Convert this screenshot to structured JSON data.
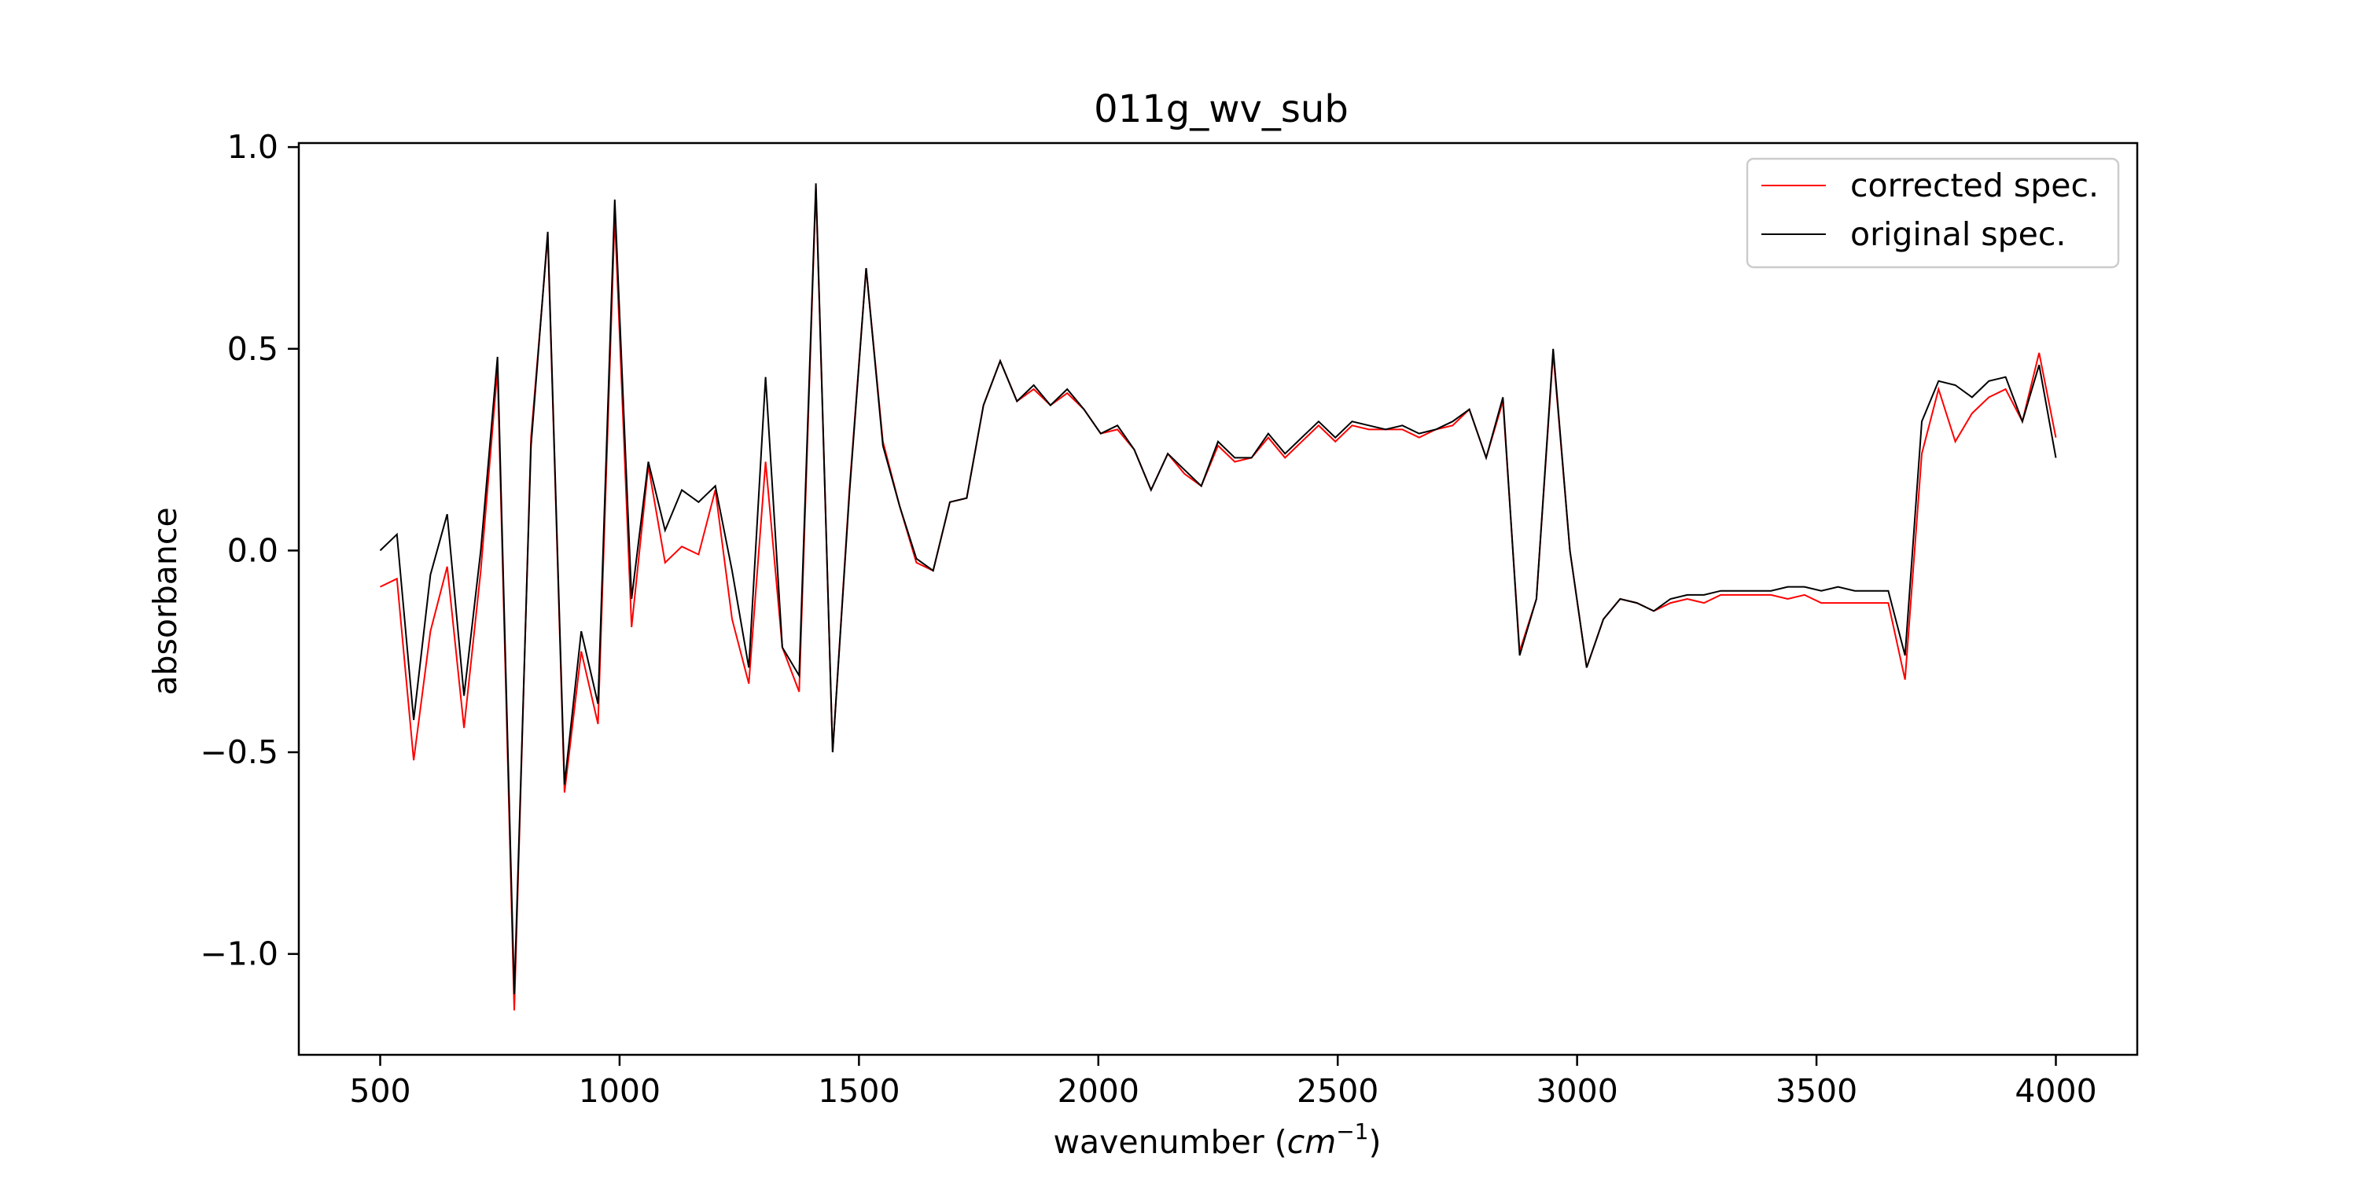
{
  "chart_data": {
    "type": "line",
    "title": "011g_wv_sub",
    "xlabel": "wavenumber (cm⁻¹)",
    "xlabel_text": "wavenumber (",
    "xlabel_unit": "cm",
    "xlabel_exp": "−1",
    "xlabel_close": ")",
    "ylabel": "absorbance",
    "xlim": [
      330,
      4170
    ],
    "ylim": [
      -1.25,
      1.01
    ],
    "xticks": [
      500,
      1000,
      1500,
      2000,
      2500,
      3000,
      3500,
      4000
    ],
    "xtick_labels": [
      "500",
      "1000",
      "1500",
      "2000",
      "2500",
      "3000",
      "3500",
      "4000"
    ],
    "yticks": [
      -1.0,
      -0.5,
      0.0,
      0.5,
      1.0
    ],
    "ytick_labels": [
      "−1.0",
      "−0.5",
      "0.0",
      "0.5",
      "1.0"
    ],
    "grid": false,
    "legend_position": "top-right",
    "x": [
      500,
      535,
      570,
      605,
      640,
      675,
      710,
      745,
      780,
      815,
      850,
      885,
      920,
      955,
      990,
      1025,
      1060,
      1095,
      1130,
      1165,
      1200,
      1235,
      1270,
      1305,
      1340,
      1375,
      1410,
      1445,
      1480,
      1515,
      1550,
      1585,
      1620,
      1655,
      1690,
      1725,
      1760,
      1795,
      1830,
      1865,
      1900,
      1935,
      1970,
      2005,
      2040,
      2075,
      2110,
      2145,
      2180,
      2215,
      2250,
      2285,
      2320,
      2355,
      2390,
      2425,
      2460,
      2495,
      2530,
      2565,
      2600,
      2635,
      2670,
      2705,
      2740,
      2775,
      2810,
      2845,
      2880,
      2915,
      2950,
      2985,
      3020,
      3055,
      3090,
      3125,
      3160,
      3195,
      3230,
      3265,
      3300,
      3335,
      3370,
      3405,
      3440,
      3475,
      3510,
      3545,
      3580,
      3615,
      3650,
      3685,
      3720,
      3755,
      3790,
      3825,
      3860,
      3895,
      3930,
      3965,
      4000
    ],
    "series": [
      {
        "name": "corrected spec.",
        "color": "#ff0000",
        "values": [
          -0.09,
          -0.07,
          -0.52,
          -0.2,
          -0.04,
          -0.44,
          -0.05,
          0.45,
          -1.14,
          0.28,
          0.78,
          -0.6,
          -0.25,
          -0.43,
          0.83,
          -0.19,
          0.21,
          -0.03,
          0.01,
          -0.01,
          0.15,
          -0.17,
          -0.33,
          0.22,
          -0.24,
          -0.35,
          0.9,
          -0.5,
          0.15,
          0.7,
          0.27,
          0.11,
          -0.03,
          -0.05,
          0.12,
          0.13,
          0.36,
          0.47,
          0.37,
          0.4,
          0.36,
          0.39,
          0.35,
          0.29,
          0.3,
          0.25,
          0.15,
          0.24,
          0.19,
          0.16,
          0.26,
          0.22,
          0.23,
          0.28,
          0.23,
          0.27,
          0.31,
          0.27,
          0.31,
          0.3,
          0.3,
          0.3,
          0.28,
          0.3,
          0.31,
          0.35,
          0.23,
          0.37,
          -0.25,
          -0.12,
          0.49,
          0.0,
          -0.29,
          -0.17,
          -0.12,
          -0.13,
          -0.15,
          -0.13,
          -0.12,
          -0.13,
          -0.11,
          -0.11,
          -0.11,
          -0.11,
          -0.12,
          -0.11,
          -0.13,
          -0.13,
          -0.13,
          -0.13,
          -0.13,
          -0.32,
          0.24,
          0.4,
          0.27,
          0.34,
          0.38,
          0.4,
          0.32,
          0.49,
          0.28
        ]
      },
      {
        "name": "original spec.",
        "color": "#000000",
        "values": [
          0.0,
          0.04,
          -0.42,
          -0.06,
          0.09,
          -0.36,
          0.0,
          0.48,
          -1.1,
          0.26,
          0.79,
          -0.58,
          -0.2,
          -0.38,
          0.87,
          -0.12,
          0.22,
          0.05,
          0.15,
          0.12,
          0.16,
          -0.05,
          -0.29,
          0.43,
          -0.24,
          -0.31,
          0.91,
          -0.5,
          0.14,
          0.7,
          0.26,
          0.11,
          -0.02,
          -0.05,
          0.12,
          0.13,
          0.36,
          0.47,
          0.37,
          0.41,
          0.36,
          0.4,
          0.35,
          0.29,
          0.31,
          0.25,
          0.15,
          0.24,
          0.2,
          0.16,
          0.27,
          0.23,
          0.23,
          0.29,
          0.24,
          0.28,
          0.32,
          0.28,
          0.32,
          0.31,
          0.3,
          0.31,
          0.29,
          0.3,
          0.32,
          0.35,
          0.23,
          0.38,
          -0.26,
          -0.12,
          0.5,
          0.0,
          -0.29,
          -0.17,
          -0.12,
          -0.13,
          -0.15,
          -0.12,
          -0.11,
          -0.11,
          -0.1,
          -0.1,
          -0.1,
          -0.1,
          -0.09,
          -0.09,
          -0.1,
          -0.09,
          -0.1,
          -0.1,
          -0.1,
          -0.26,
          0.32,
          0.42,
          0.41,
          0.38,
          0.42,
          0.43,
          0.32,
          0.46,
          0.23
        ]
      }
    ]
  }
}
